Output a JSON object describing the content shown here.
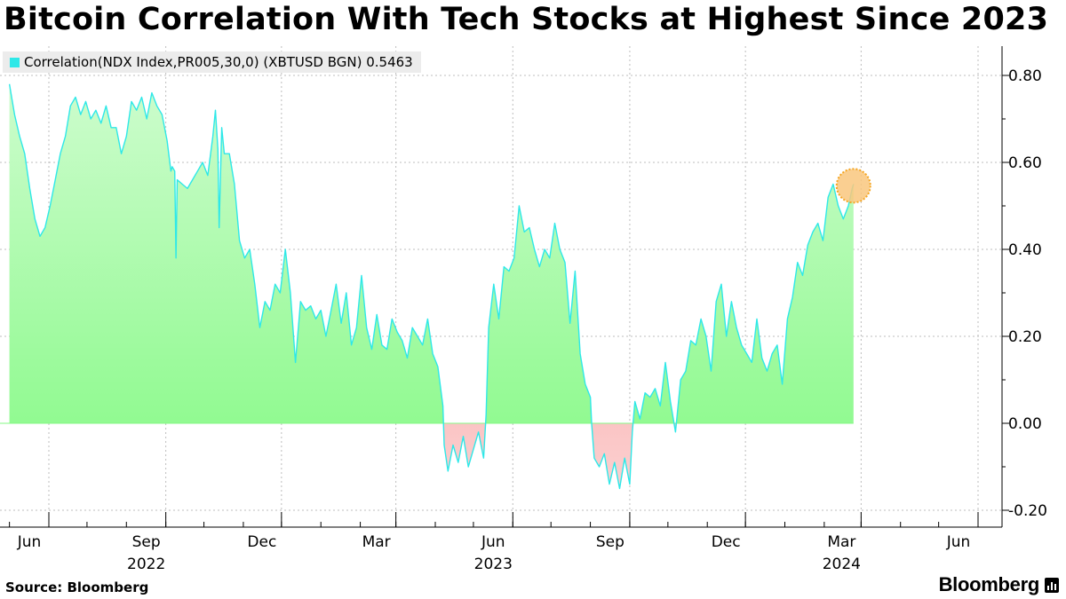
{
  "title": "Bitcoin Correlation With Tech Stocks at Highest Since 2023",
  "source": "Source: Bloomberg",
  "brand": "Bloomberg",
  "brand_icon": "bar-chart-icon",
  "chart_data": {
    "type": "area",
    "series": [
      {
        "name": "Correlation(NDX Index,PR005,30,0) (XBTUSD BGN)",
        "last_value_label": "0.5463",
        "color": "#2ee8e8",
        "fill_positive": "#86f986",
        "fill_negative": "#f98a8a",
        "points": [
          [
            "2022-05-01",
            0.78
          ],
          [
            "2022-05-05",
            0.71
          ],
          [
            "2022-05-09",
            0.66
          ],
          [
            "2022-05-13",
            0.62
          ],
          [
            "2022-05-17",
            0.54
          ],
          [
            "2022-05-21",
            0.47
          ],
          [
            "2022-05-25",
            0.43
          ],
          [
            "2022-05-29",
            0.45
          ],
          [
            "2022-06-02",
            0.5
          ],
          [
            "2022-06-06",
            0.56
          ],
          [
            "2022-06-10",
            0.62
          ],
          [
            "2022-06-14",
            0.66
          ],
          [
            "2022-06-18",
            0.73
          ],
          [
            "2022-06-22",
            0.75
          ],
          [
            "2022-06-26",
            0.71
          ],
          [
            "2022-06-30",
            0.74
          ],
          [
            "2022-07-04",
            0.7
          ],
          [
            "2022-07-08",
            0.72
          ],
          [
            "2022-07-12",
            0.69
          ],
          [
            "2022-07-16",
            0.73
          ],
          [
            "2022-07-20",
            0.68
          ],
          [
            "2022-07-24",
            0.68
          ],
          [
            "2022-07-28",
            0.62
          ],
          [
            "2022-08-01",
            0.66
          ],
          [
            "2022-08-05",
            0.74
          ],
          [
            "2022-08-09",
            0.72
          ],
          [
            "2022-08-13",
            0.75
          ],
          [
            "2022-08-17",
            0.7
          ],
          [
            "2022-08-21",
            0.76
          ],
          [
            "2022-08-25",
            0.73
          ],
          [
            "2022-08-29",
            0.71
          ],
          [
            "2022-09-02",
            0.65
          ],
          [
            "2022-09-05",
            0.58
          ],
          [
            "2022-09-06",
            0.59
          ],
          [
            "2022-09-08",
            0.58
          ],
          [
            "2022-09-09",
            0.38
          ],
          [
            "2022-09-10",
            0.56
          ],
          [
            "2022-09-14",
            0.55
          ],
          [
            "2022-09-18",
            0.54
          ],
          [
            "2022-09-22",
            0.56
          ],
          [
            "2022-09-26",
            0.58
          ],
          [
            "2022-09-30",
            0.6
          ],
          [
            "2022-10-04",
            0.57
          ],
          [
            "2022-10-08",
            0.66
          ],
          [
            "2022-10-10",
            0.72
          ],
          [
            "2022-10-12",
            0.63
          ],
          [
            "2022-10-13",
            0.45
          ],
          [
            "2022-10-15",
            0.68
          ],
          [
            "2022-10-17",
            0.62
          ],
          [
            "2022-10-21",
            0.62
          ],
          [
            "2022-10-25",
            0.55
          ],
          [
            "2022-10-29",
            0.42
          ],
          [
            "2022-11-02",
            0.38
          ],
          [
            "2022-11-06",
            0.4
          ],
          [
            "2022-11-10",
            0.32
          ],
          [
            "2022-11-14",
            0.22
          ],
          [
            "2022-11-18",
            0.28
          ],
          [
            "2022-11-22",
            0.26
          ],
          [
            "2022-11-26",
            0.32
          ],
          [
            "2022-11-30",
            0.3
          ],
          [
            "2022-12-04",
            0.4
          ],
          [
            "2022-12-08",
            0.3
          ],
          [
            "2022-12-12",
            0.14
          ],
          [
            "2022-12-16",
            0.28
          ],
          [
            "2022-12-20",
            0.26
          ],
          [
            "2022-12-24",
            0.27
          ],
          [
            "2022-12-28",
            0.24
          ],
          [
            "2023-01-01",
            0.26
          ],
          [
            "2023-01-05",
            0.2
          ],
          [
            "2023-01-09",
            0.26
          ],
          [
            "2023-01-13",
            0.32
          ],
          [
            "2023-01-17",
            0.23
          ],
          [
            "2023-01-21",
            0.3
          ],
          [
            "2023-01-25",
            0.18
          ],
          [
            "2023-01-29",
            0.22
          ],
          [
            "2023-02-02",
            0.34
          ],
          [
            "2023-02-06",
            0.22
          ],
          [
            "2023-02-10",
            0.17
          ],
          [
            "2023-02-14",
            0.25
          ],
          [
            "2023-02-18",
            0.18
          ],
          [
            "2023-02-22",
            0.17
          ],
          [
            "2023-02-26",
            0.24
          ],
          [
            "2023-03-02",
            0.21
          ],
          [
            "2023-03-06",
            0.19
          ],
          [
            "2023-03-10",
            0.15
          ],
          [
            "2023-03-14",
            0.22
          ],
          [
            "2023-03-18",
            0.2
          ],
          [
            "2023-03-22",
            0.18
          ],
          [
            "2023-03-26",
            0.24
          ],
          [
            "2023-03-30",
            0.16
          ],
          [
            "2023-04-03",
            0.13
          ],
          [
            "2023-04-07",
            0.04
          ],
          [
            "2023-04-08",
            -0.05
          ],
          [
            "2023-04-11",
            -0.11
          ],
          [
            "2023-04-15",
            -0.05
          ],
          [
            "2023-04-19",
            -0.09
          ],
          [
            "2023-04-23",
            -0.03
          ],
          [
            "2023-04-27",
            -0.1
          ],
          [
            "2023-05-01",
            -0.06
          ],
          [
            "2023-05-05",
            -0.02
          ],
          [
            "2023-05-09",
            -0.08
          ],
          [
            "2023-05-11",
            0.02
          ],
          [
            "2023-05-13",
            0.22
          ],
          [
            "2023-05-17",
            0.32
          ],
          [
            "2023-05-21",
            0.24
          ],
          [
            "2023-05-25",
            0.36
          ],
          [
            "2023-05-29",
            0.35
          ],
          [
            "2023-06-02",
            0.38
          ],
          [
            "2023-06-06",
            0.5
          ],
          [
            "2023-06-10",
            0.44
          ],
          [
            "2023-06-14",
            0.45
          ],
          [
            "2023-06-18",
            0.4
          ],
          [
            "2023-06-22",
            0.36
          ],
          [
            "2023-06-26",
            0.4
          ],
          [
            "2023-06-30",
            0.38
          ],
          [
            "2023-07-04",
            0.46
          ],
          [
            "2023-07-08",
            0.4
          ],
          [
            "2023-07-12",
            0.37
          ],
          [
            "2023-07-16",
            0.23
          ],
          [
            "2023-07-20",
            0.35
          ],
          [
            "2023-07-24",
            0.16
          ],
          [
            "2023-07-28",
            0.09
          ],
          [
            "2023-08-01",
            0.06
          ],
          [
            "2023-08-02",
            0.0
          ],
          [
            "2023-08-04",
            -0.08
          ],
          [
            "2023-08-08",
            -0.1
          ],
          [
            "2023-08-12",
            -0.07
          ],
          [
            "2023-08-16",
            -0.14
          ],
          [
            "2023-08-20",
            -0.09
          ],
          [
            "2023-08-24",
            -0.15
          ],
          [
            "2023-08-28",
            -0.08
          ],
          [
            "2023-09-01",
            -0.14
          ],
          [
            "2023-09-03",
            -0.02
          ],
          [
            "2023-09-05",
            0.05
          ],
          [
            "2023-09-09",
            0.01
          ],
          [
            "2023-09-13",
            0.07
          ],
          [
            "2023-09-17",
            0.06
          ],
          [
            "2023-09-21",
            0.08
          ],
          [
            "2023-09-25",
            0.04
          ],
          [
            "2023-09-29",
            0.14
          ],
          [
            "2023-10-03",
            0.05
          ],
          [
            "2023-10-07",
            -0.02
          ],
          [
            "2023-10-11",
            0.1
          ],
          [
            "2023-10-15",
            0.12
          ],
          [
            "2023-10-19",
            0.19
          ],
          [
            "2023-10-23",
            0.18
          ],
          [
            "2023-10-27",
            0.24
          ],
          [
            "2023-10-31",
            0.2
          ],
          [
            "2023-11-04",
            0.12
          ],
          [
            "2023-11-08",
            0.28
          ],
          [
            "2023-11-12",
            0.32
          ],
          [
            "2023-11-16",
            0.2
          ],
          [
            "2023-11-20",
            0.28
          ],
          [
            "2023-11-24",
            0.22
          ],
          [
            "2023-11-28",
            0.18
          ],
          [
            "2023-12-02",
            0.16
          ],
          [
            "2023-12-06",
            0.14
          ],
          [
            "2023-12-10",
            0.24
          ],
          [
            "2023-12-14",
            0.15
          ],
          [
            "2023-12-18",
            0.12
          ],
          [
            "2023-12-22",
            0.16
          ],
          [
            "2023-12-26",
            0.18
          ],
          [
            "2023-12-30",
            0.09
          ],
          [
            "2024-01-03",
            0.24
          ],
          [
            "2024-01-07",
            0.29
          ],
          [
            "2024-01-11",
            0.37
          ],
          [
            "2024-01-15",
            0.34
          ],
          [
            "2024-01-19",
            0.41
          ],
          [
            "2024-01-23",
            0.44
          ],
          [
            "2024-01-27",
            0.46
          ],
          [
            "2024-01-31",
            0.42
          ],
          [
            "2024-02-04",
            0.52
          ],
          [
            "2024-02-08",
            0.55
          ],
          [
            "2024-02-12",
            0.5
          ],
          [
            "2024-02-16",
            0.47
          ],
          [
            "2024-02-20",
            0.5
          ],
          [
            "2024-02-23",
            0.54
          ],
          [
            "2024-02-24",
            0.55
          ]
        ]
      }
    ],
    "y_ticks": [
      "0.80",
      "0.60",
      "0.40",
      "0.20",
      "0.00",
      "-0.20"
    ],
    "y_tick_values": [
      0.8,
      0.6,
      0.4,
      0.2,
      0.0,
      -0.2
    ],
    "ylim": [
      -0.2,
      0.8
    ],
    "x_ticks": [
      {
        "label": "Jun",
        "date": "2022-06-01"
      },
      {
        "label": "Sep",
        "date": "2022-09-01"
      },
      {
        "label": "Dec",
        "date": "2022-12-01"
      },
      {
        "label": "Mar",
        "date": "2023-03-01"
      },
      {
        "label": "Jun",
        "date": "2023-06-01"
      },
      {
        "label": "Sep",
        "date": "2023-09-01"
      },
      {
        "label": "Dec",
        "date": "2023-12-01"
      },
      {
        "label": "Mar",
        "date": "2024-03-01"
      },
      {
        "label": "Jun",
        "date": "2024-06-01"
      }
    ],
    "x_year_labels": [
      {
        "label": "2022",
        "date": "2022-09-01"
      },
      {
        "label": "2023",
        "date": "2023-06-01"
      },
      {
        "label": "2024",
        "date": "2024-03-01"
      }
    ],
    "highlight": {
      "date": "2024-02-24",
      "value": 0.5463,
      "color": "#f9c77e"
    },
    "grid": true,
    "legend": "top-left"
  }
}
